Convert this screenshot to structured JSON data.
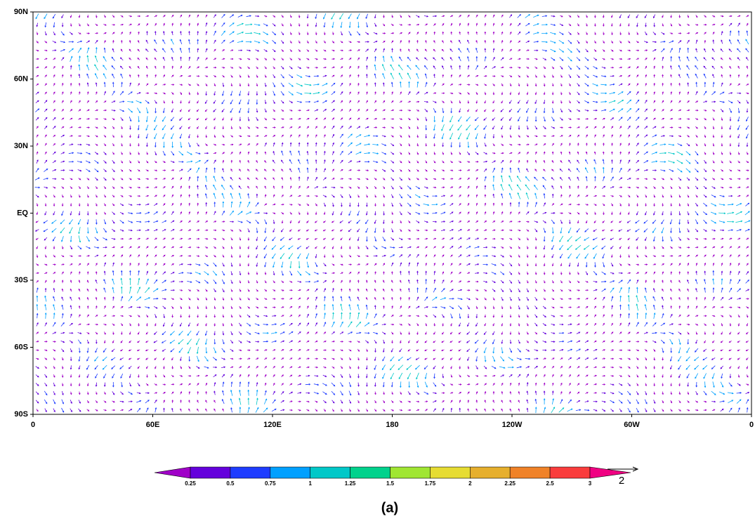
{
  "map": {
    "lat_ticks": [
      {
        "value": 90,
        "label": "90N"
      },
      {
        "value": 60,
        "label": "60N"
      },
      {
        "value": 30,
        "label": "30N"
      },
      {
        "value": 0,
        "label": "EQ"
      },
      {
        "value": -30,
        "label": "30S"
      },
      {
        "value": -60,
        "label": "60S"
      },
      {
        "value": -90,
        "label": "90S"
      }
    ],
    "lon_ticks": [
      0,
      {
        "value": 60,
        "label": "60E"
      },
      {
        "value": 120,
        "label": "120E"
      },
      180,
      {
        "value": 240,
        "label": "120W"
      },
      {
        "value": 300,
        "label": "60W"
      },
      {
        "value": 360,
        "label": "0"
      }
    ],
    "colorbar": {
      "levels": [
        0.25,
        0.5,
        0.75,
        1,
        1.25,
        1.5,
        1.75,
        2,
        2.25,
        2.5,
        3
      ],
      "colors": [
        "#a000c8",
        "#6400dc",
        "#1e3cff",
        "#00a0ff",
        "#00c8c8",
        "#00d28c",
        "#a0e632",
        "#e6dc32",
        "#e6af2d",
        "#f08228",
        "#fa3c3c",
        "#f00082"
      ]
    },
    "reference_vector": {
      "label": 2
    },
    "caption": "(a)"
  }
}
